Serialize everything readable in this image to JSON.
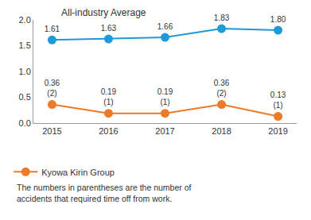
{
  "chart_data": {
    "type": "line",
    "categories": [
      "2015",
      "2016",
      "2017",
      "2018",
      "2019"
    ],
    "series": [
      {
        "name": "All-industry Average",
        "color": "#1e9ad6",
        "marker": "circle",
        "values": [
          1.61,
          1.63,
          1.66,
          1.83,
          1.8
        ],
        "value_labels": [
          "1.61",
          "1.63",
          "1.66",
          "1.83",
          "1.80"
        ]
      },
      {
        "name": "Kyowa Kirin Group",
        "color": "#ec7a26",
        "marker": "circle",
        "values": [
          0.36,
          0.19,
          0.19,
          0.36,
          0.13
        ],
        "value_labels": [
          "0.36\n(2)",
          "0.19\n(1)",
          "0.19\n(1)",
          "0.36\n(2)",
          "0.13\n(1)"
        ]
      }
    ],
    "ylim": [
      0,
      2
    ],
    "yticks": [
      {
        "value": 0,
        "label": "0.0"
      },
      0.5,
      {
        "value": 1,
        "label": "1.0"
      },
      1.5,
      {
        "value": 2,
        "label": "2.0"
      }
    ],
    "grid": false,
    "data_labels": true,
    "legend": "bottom",
    "note": "The numbers in parentheses are the number of\naccidents that required time off from work."
  }
}
